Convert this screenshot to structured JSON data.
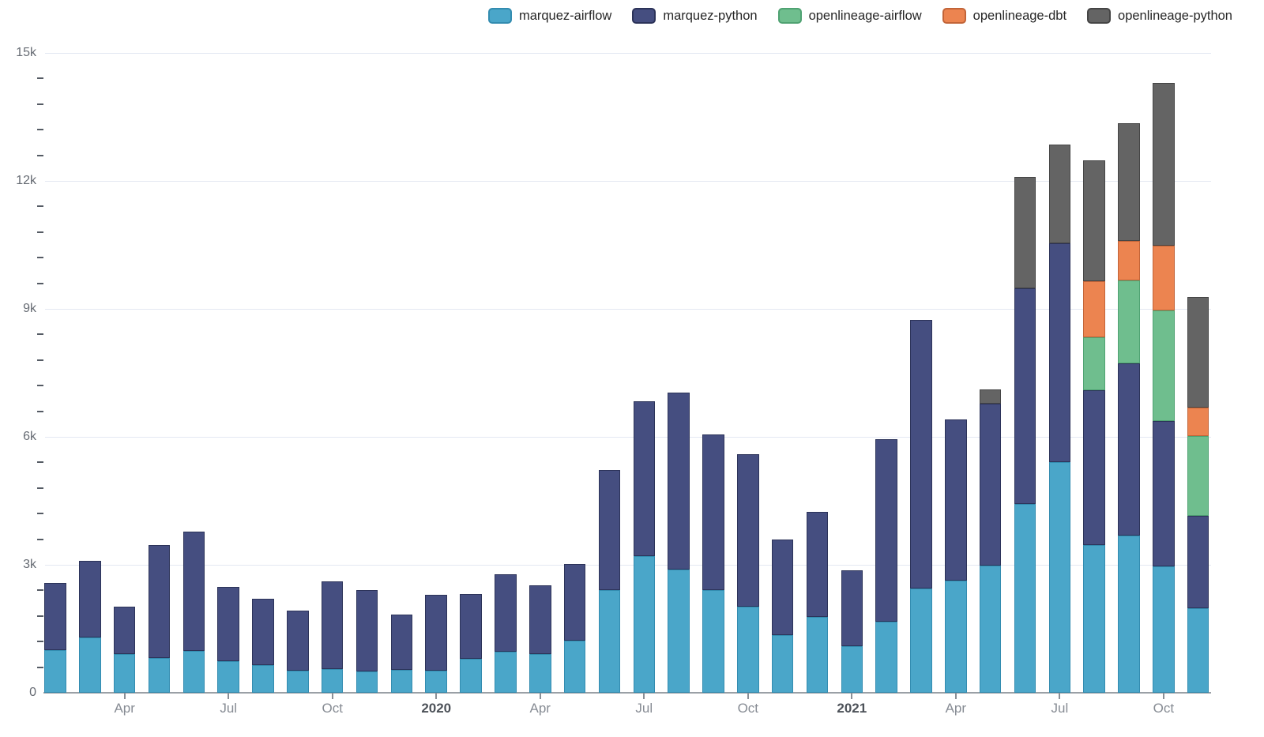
{
  "colors": {
    "background": "#ffffff",
    "gridline": "#E3E8F2",
    "axis_line": "#9AA0A6",
    "minor_tick": "#555B64",
    "x_tick": "#8A8F96",
    "y_label_text": "#666B73",
    "x_month_label_text": "#878C94",
    "x_year_label_text": "#4D5259",
    "legend_text": "#262626"
  },
  "legend": {
    "position": "top-right",
    "items": [
      {
        "label": "marquez-airflow",
        "color": "#4AA6C9",
        "border": "#338CB0"
      },
      {
        "label": "marquez-python",
        "color": "#454E80",
        "border": "#2C3359"
      },
      {
        "label": "openlineage-airflow",
        "color": "#6FBE8E",
        "border": "#4FA272"
      },
      {
        "label": "openlineage-dbt",
        "color": "#EC8450",
        "border": "#C26438"
      },
      {
        "label": "openlineage-python",
        "color": "#646464",
        "border": "#454545"
      }
    ]
  },
  "chart_data": {
    "type": "bar",
    "stacked": true,
    "title": "",
    "xlabel": "",
    "ylabel": "",
    "grid": "horizontal-major",
    "legend_position": "top",
    "ylim": [
      0,
      15000
    ],
    "categories": [
      "Feb 2019",
      "Mar 2019",
      "Apr 2019",
      "May 2019",
      "Jun 2019",
      "Jul 2019",
      "Aug 2019",
      "Sep 2019",
      "Oct 2019",
      "Nov 2019",
      "Dec 2019",
      "Jan 2020",
      "Feb 2020",
      "Mar 2020",
      "Apr 2020",
      "May 2020",
      "Jun 2020",
      "Jul 2020",
      "Aug 2020",
      "Sep 2020",
      "Oct 2020",
      "Nov 2020",
      "Dec 2020",
      "Jan 2021",
      "Feb 2021",
      "Mar 2021",
      "Apr 2021",
      "May 2021",
      "Jun 2021",
      "Jul 2021",
      "Aug 2021",
      "Sep 2021",
      "Oct 2021",
      "Nov 2021"
    ],
    "series": [
      {
        "name": "marquez-airflow",
        "color": "#4AA6C9",
        "border": "#338CB0",
        "values": [
          1000,
          1290,
          900,
          810,
          990,
          740,
          650,
          510,
          560,
          500,
          530,
          520,
          790,
          970,
          910,
          1220,
          2400,
          3200,
          2880,
          2410,
          2010,
          1350,
          1780,
          1090,
          1660,
          2440,
          2630,
          2990,
          4420,
          5410,
          3460,
          3680,
          2960,
          1990
        ]
      },
      {
        "name": "marquez-python",
        "color": "#454E80",
        "border": "#2C3359",
        "values": [
          1580,
          1800,
          1120,
          2650,
          2790,
          1750,
          1550,
          1420,
          2050,
          1900,
          1300,
          1770,
          1520,
          1810,
          1610,
          1790,
          2820,
          3640,
          4160,
          3650,
          3590,
          2240,
          2470,
          1780,
          4280,
          6300,
          3780,
          3780,
          5070,
          5120,
          3630,
          4040,
          3410,
          2160
        ]
      },
      {
        "name": "openlineage-airflow",
        "color": "#6FBE8E",
        "border": "#4FA272",
        "values": [
          0,
          0,
          0,
          0,
          0,
          0,
          0,
          0,
          0,
          0,
          0,
          0,
          0,
          0,
          0,
          0,
          0,
          0,
          0,
          0,
          0,
          0,
          0,
          0,
          0,
          0,
          0,
          0,
          0,
          0,
          1250,
          1950,
          2600,
          1860
        ]
      },
      {
        "name": "openlineage-dbt",
        "color": "#EC8450",
        "border": "#C26438",
        "values": [
          0,
          0,
          0,
          0,
          0,
          0,
          0,
          0,
          0,
          0,
          0,
          0,
          0,
          0,
          0,
          0,
          0,
          0,
          0,
          0,
          0,
          0,
          0,
          0,
          0,
          0,
          0,
          0,
          0,
          0,
          1310,
          920,
          1510,
          680
        ]
      },
      {
        "name": "openlineage-python",
        "color": "#646464",
        "border": "#454545",
        "values": [
          0,
          0,
          0,
          0,
          0,
          0,
          0,
          0,
          0,
          0,
          0,
          0,
          0,
          0,
          0,
          0,
          0,
          0,
          0,
          0,
          0,
          0,
          0,
          0,
          0,
          0,
          0,
          350,
          2600,
          2320,
          2830,
          2760,
          3820,
          2590
        ]
      }
    ],
    "yticks": {
      "values": [
        0,
        3000,
        6000,
        9000,
        12000,
        15000
      ],
      "labels": [
        "0",
        "3k",
        "6k",
        "9k",
        "12k",
        "15k"
      ],
      "minor_step": 600
    },
    "xticks": [
      {
        "index": 2,
        "label": "Apr",
        "bold": false
      },
      {
        "index": 5,
        "label": "Jul",
        "bold": false
      },
      {
        "index": 8,
        "label": "Oct",
        "bold": false
      },
      {
        "index": 11,
        "label": "2020",
        "bold": true
      },
      {
        "index": 14,
        "label": "Apr",
        "bold": false
      },
      {
        "index": 17,
        "label": "Jul",
        "bold": false
      },
      {
        "index": 20,
        "label": "Oct",
        "bold": false
      },
      {
        "index": 23,
        "label": "2021",
        "bold": true
      },
      {
        "index": 26,
        "label": "Apr",
        "bold": false
      },
      {
        "index": 29,
        "label": "Jul",
        "bold": false
      },
      {
        "index": 32,
        "label": "Oct",
        "bold": false
      }
    ]
  }
}
